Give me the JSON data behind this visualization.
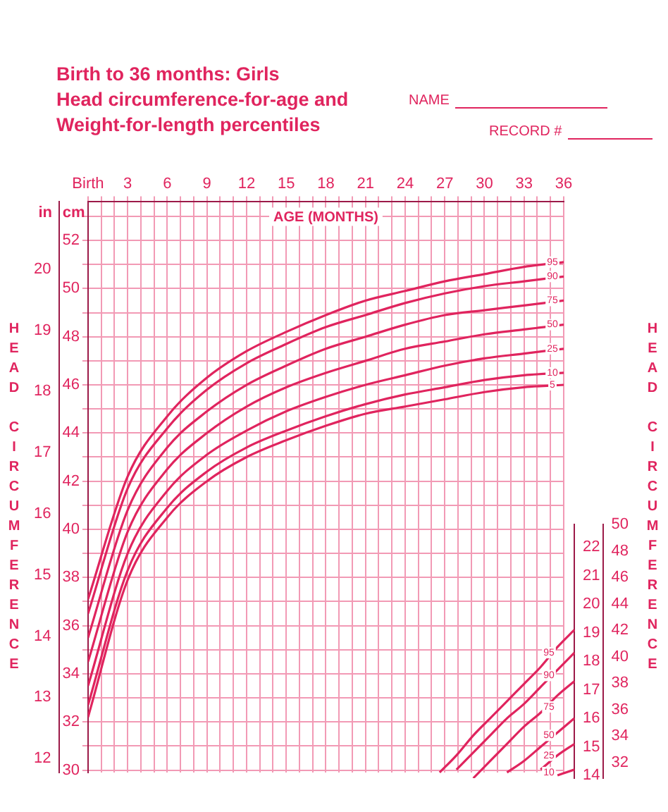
{
  "chart_data": [
    {
      "type": "line",
      "title": "Birth to 36 months: Girls",
      "subtitle": "Head circumference-for-age and Weight-for-length percentiles",
      "xlabel": "AGE (MONTHS)",
      "ylabel": "cm",
      "y2label": "in",
      "x": [
        0,
        3,
        6,
        9,
        12,
        15,
        18,
        21,
        24,
        27,
        30,
        33,
        36
      ],
      "series": [
        {
          "color": "#e0245e",
          "values": [
            37.1,
            42.2,
            44.7,
            46.3,
            47.4,
            48.2,
            48.9,
            49.5,
            49.9,
            50.3,
            50.6,
            50.9,
            51.1
          ]
        },
        {
          "color": "#e0245e",
          "values": [
            36.5,
            41.7,
            44.2,
            45.8,
            46.9,
            47.7,
            48.4,
            48.9,
            49.4,
            49.8,
            50.1,
            50.3,
            50.5
          ]
        },
        {
          "color": "#e0245e",
          "values": [
            35.5,
            40.8,
            43.4,
            44.9,
            46.0,
            46.8,
            47.5,
            48.0,
            48.5,
            48.9,
            49.1,
            49.3,
            49.5
          ]
        },
        {
          "color": "#e0245e",
          "values": [
            34.5,
            39.9,
            42.5,
            44.0,
            45.1,
            45.9,
            46.5,
            47.0,
            47.5,
            47.8,
            48.1,
            48.3,
            48.5
          ]
        },
        {
          "color": "#e0245e",
          "values": [
            33.5,
            39.0,
            41.6,
            43.1,
            44.1,
            44.9,
            45.5,
            46.0,
            46.4,
            46.8,
            47.1,
            47.3,
            47.5
          ]
        },
        {
          "color": "#e0245e",
          "values": [
            32.7,
            38.3,
            40.9,
            42.4,
            43.4,
            44.1,
            44.7,
            45.2,
            45.6,
            45.9,
            46.2,
            46.4,
            46.5
          ]
        },
        {
          "color": "#e0245e",
          "values": [
            32.2,
            37.9,
            40.5,
            42.0,
            43.0,
            43.7,
            44.3,
            44.8,
            45.1,
            45.4,
            45.7,
            45.9,
            46.0
          ]
        }
      ],
      "xlim": [
        0,
        36
      ],
      "xticks": [
        {
          "value": 0,
          "label": "Birth"
        },
        {
          "value": 1,
          "label": null
        },
        {
          "value": 2,
          "label": null
        },
        3,
        {
          "value": 4,
          "label": null
        },
        {
          "value": 5,
          "label": null
        },
        6,
        {
          "value": 7,
          "label": null
        },
        {
          "value": 8,
          "label": null
        },
        9,
        {
          "value": 10,
          "label": null
        },
        {
          "value": 11,
          "label": null
        },
        12,
        {
          "value": 13,
          "label": null
        },
        {
          "value": 14,
          "label": null
        },
        15,
        {
          "value": 16,
          "label": null
        },
        {
          "value": 17,
          "label": null
        },
        18,
        {
          "value": 19,
          "label": null
        },
        {
          "value": 20,
          "label": null
        },
        21,
        {
          "value": 22,
          "label": null
        },
        {
          "value": 23,
          "label": null
        },
        24,
        {
          "value": 25,
          "label": null
        },
        {
          "value": 26,
          "label": null
        },
        27,
        {
          "value": 28,
          "label": null
        },
        {
          "value": 29,
          "label": null
        },
        30,
        {
          "value": 31,
          "label": null
        },
        {
          "value": 32,
          "label": null
        },
        33,
        {
          "value": 34,
          "label": null
        },
        {
          "value": 35,
          "label": null
        },
        36
      ],
      "ylim": [
        29.9,
        53.6
      ],
      "yticks": [
        30,
        {
          "value": 31,
          "label": null
        },
        32,
        {
          "value": 33,
          "label": null
        },
        34,
        {
          "value": 35,
          "label": null
        },
        36,
        {
          "value": 37,
          "label": null
        },
        38,
        {
          "value": 39,
          "label": null
        },
        40,
        {
          "value": 41,
          "label": null
        },
        42,
        {
          "value": 43,
          "label": null
        },
        44,
        {
          "value": 45,
          "label": null
        },
        46,
        {
          "value": 47,
          "label": null
        },
        48,
        {
          "value": 49,
          "label": null
        },
        50,
        {
          "value": 51,
          "label": null
        },
        52,
        {
          "value": 53,
          "label": null
        }
      ],
      "y2lim": [
        11.77,
        21.1
      ],
      "y2ticks": [
        12,
        13,
        14,
        15,
        16,
        17,
        18,
        19,
        20
      ],
      "grid": true,
      "legend": false,
      "marker": "none",
      "line_style": "solid",
      "annotations": [
        "NAME",
        "RECORD #",
        "HEAD CIRCUMFERENCE",
        {
          "text": "95",
          "y": 51.1
        },
        {
          "text": "90",
          "y": 50.5
        },
        {
          "text": "75",
          "y": 49.5
        },
        {
          "text": "50",
          "y": 48.5
        },
        {
          "text": "25",
          "y": 47.5
        },
        {
          "text": "10",
          "y": 46.5
        },
        {
          "text": "5",
          "y": 46.0
        }
      ]
    },
    {
      "type": "line",
      "categories": [
        null,
        null,
        null,
        null,
        null,
        null,
        null,
        null,
        null,
        null
      ],
      "series": [
        {
          "color": "#e0245e",
          "values": [
            null,
            14.1,
            14.7,
            15.4,
            16.0,
            16.6,
            17.2,
            17.8,
            18.5,
            19.1
          ]
        },
        {
          "color": "#e0245e",
          "values": [
            null,
            null,
            14.2,
            14.8,
            15.4,
            16.0,
            16.5,
            17.1,
            17.7,
            18.3
          ]
        },
        {
          "color": "#e0245e",
          "values": [
            null,
            null,
            null,
            13.9,
            14.5,
            15.1,
            15.7,
            16.2,
            16.8,
            17.3
          ]
        },
        {
          "color": "#e0245e",
          "values": [
            null,
            null,
            null,
            null,
            null,
            14.1,
            14.5,
            15.0,
            15.5,
            16.0
          ]
        },
        {
          "color": "#e0245e",
          "values": [
            null,
            null,
            null,
            null,
            null,
            null,
            null,
            14.2,
            14.7,
            15.1
          ]
        },
        {
          "color": "#e0245e",
          "values": [
            null,
            null,
            null,
            null,
            null,
            null,
            null,
            null,
            14.0,
            14.2
          ]
        }
      ],
      "ylim": [
        13.9,
        22.8
      ],
      "yticks": [
        14,
        15,
        16,
        17,
        18,
        19,
        20,
        21,
        22
      ],
      "y2lim": [
        30.8,
        50
      ],
      "y2ticks": [
        32,
        34,
        36,
        38,
        40,
        42,
        44,
        46,
        48,
        50
      ],
      "tick_labels": "y",
      "legend": false,
      "marker": "none",
      "line_style": "solid",
      "annotations": [
        {
          "text": "95",
          "y": 18.3
        },
        {
          "text": "90",
          "y": 17.5
        },
        {
          "text": "75",
          "y": 16.4
        },
        {
          "text": "50",
          "y": 15.4
        },
        {
          "text": "25",
          "y": 14.7
        },
        {
          "text": "10",
          "y": 14.1
        }
      ]
    }
  ]
}
